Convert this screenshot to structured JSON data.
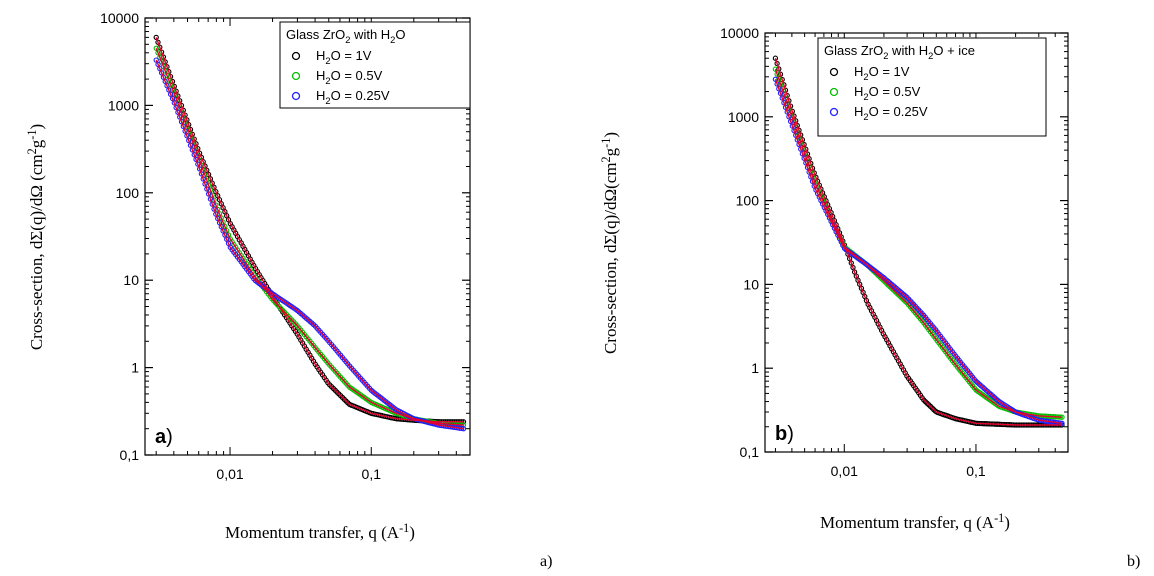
{
  "chart_data": [
    {
      "type": "line",
      "panel_label": "a",
      "caption": "a)",
      "x_scale": "log",
      "y_scale": "log",
      "xlim": [
        0.0025,
        0.5
      ],
      "ylim": [
        0.1,
        10000
      ],
      "x_ticks": [
        {
          "v": 0.01,
          "label": "0,01"
        },
        {
          "v": 0.1,
          "label": "0,1"
        }
      ],
      "y_ticks": [
        {
          "v": 0.1,
          "label": "0,1"
        },
        {
          "v": 1,
          "label": "1"
        },
        {
          "v": 10,
          "label": "10"
        },
        {
          "v": 100,
          "label": "100"
        },
        {
          "v": 1000,
          "label": "1000"
        },
        {
          "v": 10000,
          "label": "10000"
        }
      ],
      "xlabel": {
        "main": "Momentum transfer, q (A",
        "sup": "-1",
        "close": ")"
      },
      "ylabel": {
        "main": "Cross-section, dΣ(q)/dΩ (cm",
        "sup1": "2",
        "mid": "g",
        "sup2": "-1",
        "close": ")"
      },
      "legend": {
        "title_parts": [
          "Glass ZrO",
          "2",
          " with H",
          "2",
          "O"
        ]
      },
      "series": [
        {
          "name": "H2O = 1V",
          "name_parts": [
            "H",
            "2",
            "O = 1V"
          ],
          "color": "#000000",
          "points": [
            [
              0.003,
              6000
            ],
            [
              0.004,
              1700
            ],
            [
              0.006,
              300
            ],
            [
              0.008,
              100
            ],
            [
              0.01,
              45
            ],
            [
              0.015,
              14
            ],
            [
              0.02,
              6.5
            ],
            [
              0.03,
              2.4
            ],
            [
              0.04,
              1.1
            ],
            [
              0.05,
              0.65
            ],
            [
              0.07,
              0.38
            ],
            [
              0.1,
              0.3
            ],
            [
              0.15,
              0.26
            ],
            [
              0.2,
              0.25
            ],
            [
              0.3,
              0.24
            ],
            [
              0.45,
              0.24
            ]
          ]
        },
        {
          "name": "H2O = 0.5V",
          "name_parts": [
            "H",
            "2",
            "O = 0.5V"
          ],
          "color": "#00c000",
          "points": [
            [
              0.003,
              4500
            ],
            [
              0.004,
              1400
            ],
            [
              0.006,
              250
            ],
            [
              0.008,
              70
            ],
            [
              0.01,
              30
            ],
            [
              0.015,
              11
            ],
            [
              0.02,
              6
            ],
            [
              0.03,
              3
            ],
            [
              0.04,
              1.7
            ],
            [
              0.05,
              1.1
            ],
            [
              0.07,
              0.6
            ],
            [
              0.1,
              0.4
            ],
            [
              0.15,
              0.3
            ],
            [
              0.2,
              0.26
            ],
            [
              0.3,
              0.23
            ],
            [
              0.45,
              0.22
            ]
          ]
        },
        {
          "name": "H2O = 0.25V",
          "name_parts": [
            "H",
            "2",
            "O = 0.25V"
          ],
          "color": "#2020ff",
          "points": [
            [
              0.003,
              3300
            ],
            [
              0.004,
              1100
            ],
            [
              0.006,
              200
            ],
            [
              0.008,
              55
            ],
            [
              0.01,
              24
            ],
            [
              0.015,
              10
            ],
            [
              0.02,
              7
            ],
            [
              0.03,
              4.5
            ],
            [
              0.04,
              3
            ],
            [
              0.05,
              2
            ],
            [
              0.07,
              1.05
            ],
            [
              0.1,
              0.55
            ],
            [
              0.15,
              0.33
            ],
            [
              0.2,
              0.26
            ],
            [
              0.3,
              0.22
            ],
            [
              0.45,
              0.2
            ]
          ]
        }
      ]
    },
    {
      "type": "line",
      "panel_label": "b",
      "caption": "b)",
      "x_scale": "log",
      "y_scale": "log",
      "xlim": [
        0.0025,
        0.5
      ],
      "ylim": [
        0.1,
        10000
      ],
      "x_ticks": [
        {
          "v": 0.01,
          "label": "0,01"
        },
        {
          "v": 0.1,
          "label": "0,1"
        }
      ],
      "y_ticks": [
        {
          "v": 0.1,
          "label": "0,1"
        },
        {
          "v": 1,
          "label": "1"
        },
        {
          "v": 10,
          "label": "10"
        },
        {
          "v": 100,
          "label": "100"
        },
        {
          "v": 1000,
          "label": "1000"
        },
        {
          "v": 10000,
          "label": "10000"
        }
      ],
      "xlabel": {
        "main": "Momentum transfer, q (A",
        "sup": "-1",
        "close": ")"
      },
      "ylabel": {
        "main": "Cross-section, dΣ(q)/dΩ(cm",
        "sup1": "2",
        "mid": "g",
        "sup2": "-1",
        "close": ")"
      },
      "legend": {
        "title_parts": [
          "Glass ZrO",
          "2",
          " with H",
          "2",
          "O + ice"
        ]
      },
      "series": [
        {
          "name": "H2O = 1V",
          "name_parts": [
            "H",
            "2",
            "O = 1V"
          ],
          "color": "#000000",
          "points": [
            [
              0.003,
              5000
            ],
            [
              0.004,
              1200
            ],
            [
              0.006,
              200
            ],
            [
              0.008,
              70
            ],
            [
              0.01,
              30
            ],
            [
              0.012,
              14
            ],
            [
              0.015,
              6
            ],
            [
              0.02,
              2.5
            ],
            [
              0.03,
              0.8
            ],
            [
              0.04,
              0.42
            ],
            [
              0.05,
              0.3
            ],
            [
              0.07,
              0.25
            ],
            [
              0.1,
              0.22
            ],
            [
              0.2,
              0.21
            ],
            [
              0.3,
              0.21
            ],
            [
              0.45,
              0.21
            ]
          ]
        },
        {
          "name": "H2O = 0.5V",
          "name_parts": [
            "H",
            "2",
            "O = 0.5V"
          ],
          "color": "#00c000",
          "points": [
            [
              0.003,
              3700
            ],
            [
              0.004,
              1000
            ],
            [
              0.006,
              160
            ],
            [
              0.008,
              60
            ],
            [
              0.01,
              28
            ],
            [
              0.015,
              17
            ],
            [
              0.02,
              11
            ],
            [
              0.03,
              6
            ],
            [
              0.04,
              3.5
            ],
            [
              0.05,
              2.2
            ],
            [
              0.07,
              1.1
            ],
            [
              0.1,
              0.55
            ],
            [
              0.15,
              0.35
            ],
            [
              0.2,
              0.3
            ],
            [
              0.3,
              0.27
            ],
            [
              0.45,
              0.26
            ]
          ]
        },
        {
          "name": "H2O = 0.25V",
          "name_parts": [
            "H",
            "2",
            "O = 0.25V"
          ],
          "color": "#2020ff",
          "points": [
            [
              0.003,
              2800
            ],
            [
              0.004,
              800
            ],
            [
              0.006,
              140
            ],
            [
              0.008,
              55
            ],
            [
              0.01,
              27
            ],
            [
              0.015,
              17
            ],
            [
              0.02,
              12
            ],
            [
              0.03,
              7
            ],
            [
              0.04,
              4.3
            ],
            [
              0.05,
              2.8
            ],
            [
              0.07,
              1.4
            ],
            [
              0.1,
              0.7
            ],
            [
              0.15,
              0.4
            ],
            [
              0.2,
              0.3
            ],
            [
              0.3,
              0.24
            ],
            [
              0.45,
              0.22
            ]
          ]
        }
      ]
    }
  ]
}
